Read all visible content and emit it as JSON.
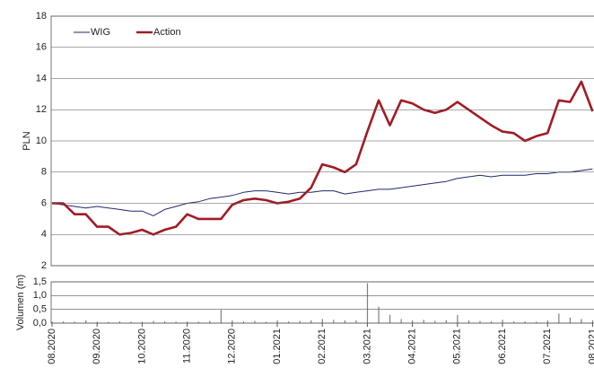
{
  "chart_data": [
    {
      "type": "line",
      "ylabel": "PLN",
      "categories": [
        "08.2020",
        null,
        null,
        null,
        "09.2020",
        null,
        null,
        null,
        "10.2020",
        null,
        null,
        null,
        "11.2020",
        null,
        null,
        null,
        "12.2020",
        null,
        null,
        null,
        "01.2021",
        null,
        null,
        null,
        "02.2021",
        null,
        null,
        null,
        "03.2021",
        null,
        null,
        null,
        "04.2021",
        null,
        null,
        null,
        "05.2021",
        null,
        null,
        null,
        "06.2021",
        null,
        null,
        null,
        "07.2021",
        null,
        null,
        null,
        "08.2021"
      ],
      "series": [
        {
          "name": "WIG",
          "color": "#1f2a6b",
          "values": [
            6.0,
            5.9,
            5.8,
            5.7,
            5.8,
            5.7,
            5.6,
            5.5,
            5.5,
            5.2,
            5.6,
            5.8,
            6.0,
            6.1,
            6.3,
            6.4,
            6.5,
            6.7,
            6.8,
            6.8,
            6.7,
            6.6,
            6.7,
            6.7,
            6.8,
            6.8,
            6.6,
            6.7,
            6.8,
            6.9,
            6.9,
            7.0,
            7.1,
            7.2,
            7.3,
            7.4,
            7.6,
            7.7,
            7.8,
            7.7,
            7.8,
            7.8,
            7.8,
            7.9,
            7.9,
            8.0,
            8.0,
            8.1,
            8.2
          ]
        },
        {
          "name": "Action",
          "color": "#a01c24",
          "values": [
            6.0,
            6.0,
            5.3,
            5.3,
            4.5,
            4.5,
            4.0,
            4.1,
            4.3,
            4.0,
            4.3,
            4.5,
            5.3,
            5.0,
            5.0,
            5.0,
            5.9,
            6.2,
            6.3,
            6.2,
            6.0,
            6.1,
            6.3,
            7.0,
            8.5,
            8.3,
            8.0,
            8.5,
            10.6,
            12.6,
            11.0,
            12.6,
            12.4,
            12.0,
            11.8,
            12.0,
            12.5,
            12.0,
            11.5,
            11.0,
            10.6,
            10.5,
            10.0,
            10.3,
            10.5,
            12.6,
            12.5,
            13.8,
            11.9
          ]
        }
      ],
      "ylim": [
        2,
        18
      ],
      "yticks": [
        2,
        4,
        6,
        8,
        10,
        12,
        14,
        16,
        18
      ],
      "grid": true,
      "legend": "top-left"
    },
    {
      "type": "bar",
      "ylabel": "Volumen (m)",
      "color": "#808080",
      "values": [
        0.05,
        0.06,
        0.05,
        0.1,
        0.05,
        0.04,
        0.06,
        0.05,
        0.05,
        0.08,
        0.06,
        0.05,
        0.06,
        0.05,
        0.08,
        0.5,
        0.1,
        0.06,
        0.08,
        0.05,
        0.1,
        0.06,
        0.08,
        0.1,
        0.15,
        0.12,
        0.1,
        0.1,
        1.45,
        0.6,
        0.3,
        0.15,
        0.1,
        0.12,
        0.08,
        0.1,
        0.3,
        0.1,
        0.08,
        0.06,
        0.12,
        0.06,
        0.06,
        0.05,
        0.1,
        0.35,
        0.2,
        0.15,
        0.1
      ],
      "ylim": [
        0,
        1.5
      ],
      "yticks": [
        {
          "value": 0,
          "label": "0,0"
        },
        {
          "value": 0.5,
          "label": "0,5"
        },
        {
          "value": 1,
          "label": "1,0"
        },
        {
          "value": 1.5,
          "label": "1,5"
        }
      ],
      "grid": true
    }
  ]
}
